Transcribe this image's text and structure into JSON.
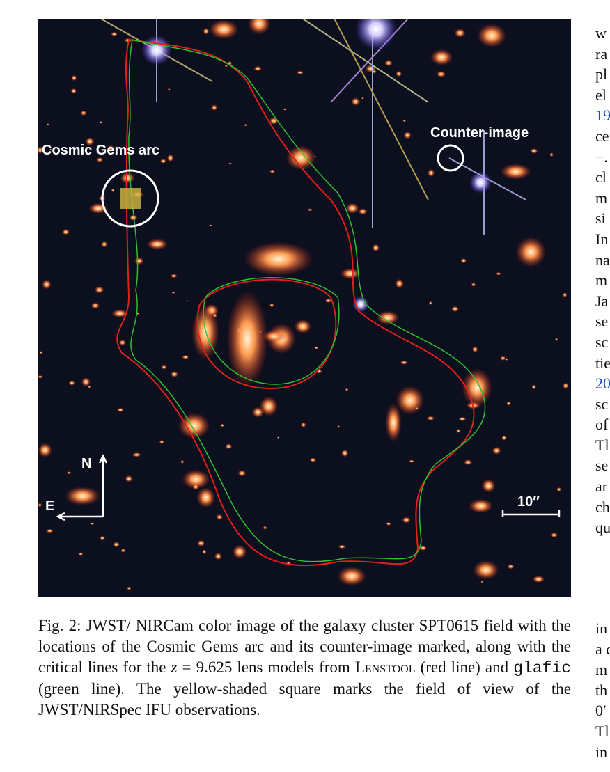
{
  "figure": {
    "labels": {
      "arc": "Cosmic Gems arc",
      "counter": "Counter-image",
      "north": "N",
      "east": "E",
      "scale": "10″"
    },
    "caption": [
      "Fig. 2: JWST/ NIRCam color image of the galaxy cluster SPT0615 field with the locations of the Cosmic Gems arc and its counter-image marked, along with the critical lines for the ",
      "z",
      " = 9.625 lens models from ",
      "Lenstool",
      " (red line) and ",
      "glafic",
      " (green line). The yellow-shaded square marks the field of view of the JWST/NIRSpec IFU observations."
    ]
  },
  "right_column": {
    "block1": [
      "w",
      "ra",
      "pl",
      "el",
      "19",
      "ce",
      "−.",
      "cl",
      "m",
      "si",
      "In",
      "na",
      "m",
      "Ja",
      "se",
      "sc",
      "tie",
      "20",
      "sc",
      "of",
      "Tl",
      "se",
      "ar",
      "ch",
      "qu"
    ],
    "block2": [
      "in",
      "a c",
      "m",
      "th",
      "0′",
      "Tl",
      "in"
    ]
  }
}
